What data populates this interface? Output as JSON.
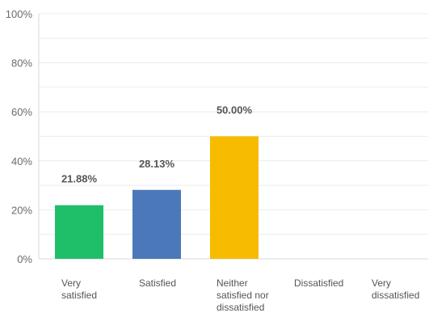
{
  "chart_data": {
    "type": "bar",
    "categories": [
      [
        "Very",
        "satisfied"
      ],
      [
        "Satisfied"
      ],
      [
        "Neither",
        "satisfied nor",
        "dissatisfied"
      ],
      [
        "Dissatisfied"
      ],
      [
        "Very",
        "dissatisfied"
      ]
    ],
    "values": [
      21.88,
      28.13,
      50.0,
      0,
      0
    ],
    "data_labels": [
      "21.88%",
      "28.13%",
      "50.00%",
      "",
      ""
    ],
    "colors": [
      "#1fbf6a",
      "#4a78b8",
      "#f7bb00",
      "#4a78b8",
      "#4a78b8"
    ],
    "ylim": [
      0,
      100
    ],
    "yticks": [
      0,
      20,
      40,
      60,
      80,
      100
    ],
    "ytick_labels": [
      "0%",
      "20%",
      "40%",
      "60%",
      "80%",
      "100%"
    ],
    "grid": true,
    "title": "",
    "xlabel": "",
    "ylabel": ""
  },
  "style": {
    "grid_color": "#ececec",
    "axis_color": "#d8d8d8",
    "text_color": "#6b6b6b",
    "label_color": "#555555"
  }
}
